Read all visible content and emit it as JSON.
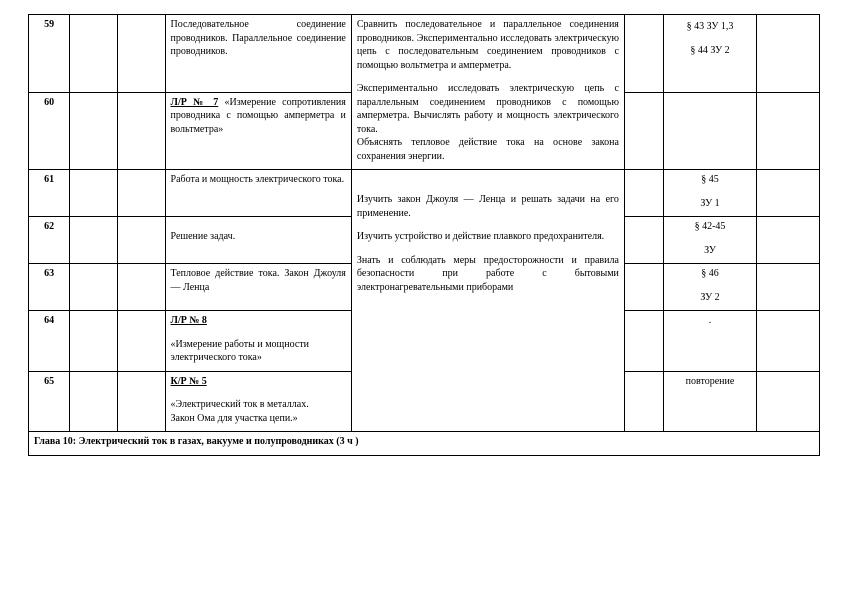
{
  "rows": [
    {
      "num": "59",
      "topic": "Последовательное соединение проводников. Параллельное соединение проводников.",
      "goals_html": "Сравнить последовательное и параллельное соединения проводников. Экспериментально исследовать электрическую цепь с последовательным соединением проводников с помощью вольтметра и амперметра.",
      "home_html": "§ 43 ЗУ 1,3<div class='sp'></div>§ 44 ЗУ 2"
    },
    {
      "num": "60",
      "topic_html": "<span class='bold under'>Л/Р № 7</span> «Измерение сопротивления проводника с помощью амперметра и вольтметра»",
      "goals_html": "Экспериментально исследовать электрическую цепь с параллельным соединением проводников с помощью амперметра. Вычислять работу и мощность электрического тока.<br>Объяснять тепловое действие тока на основе закона сохранения энергии.",
      "home_html": ""
    },
    {
      "num": "61",
      "topic": "Работа и мощность электрического тока.",
      "home_html": "§ 45<div class='sp'></div>ЗУ 1"
    },
    {
      "num": "62",
      "topic": "Решение задач.",
      "goals_html": "Изучить закон Джоуля — Ленца и решать задачи на его применение.<div class='sp'></div>Изучить устройство и действие плавкого предохранителя.<div class='sp'></div>Знать и соблюдать меры предосторожности и правила безопасности при работе с бытовыми электронагревательными приборами",
      "home_html": "§ 42-45<div class='sp'></div>ЗУ"
    },
    {
      "num": "63",
      "topic": "Тепловое действие тока. Закон Джоуля — Ленца",
      "home_html": "§ 46<div class='sp'></div>ЗУ 2"
    },
    {
      "num": "64",
      "topic_html": "<span class='bold under'>Л/Р № 8</span><div class='sp'></div>«Измерение работы и мощности<br>электрического тока»",
      "home_html": "."
    },
    {
      "num": "65",
      "topic_html": "<span class='bold under'>К/Р № 5</span><div class='sp'></div>«Электрический ток в металлах.<br>Закон Ома для участка цепи.»",
      "home_html": "повторение"
    }
  ],
  "chapter": "Глава 10: Электрический ток в газах, вакууме и полупроводниках (3 ч )"
}
